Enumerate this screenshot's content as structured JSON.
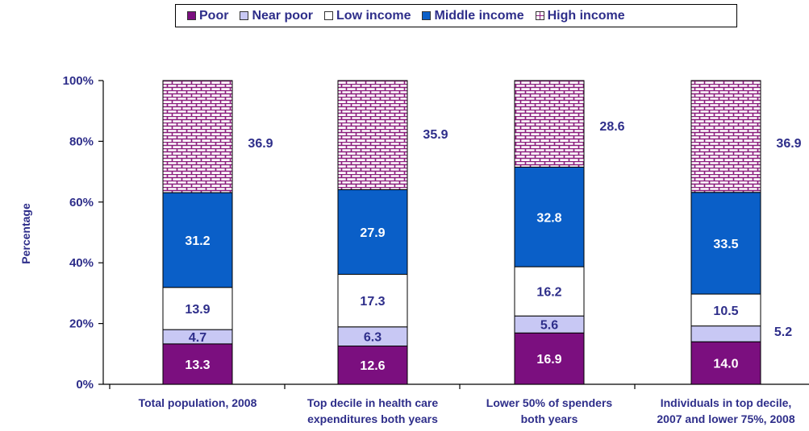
{
  "chart_data": {
    "type": "bar",
    "stacked": true,
    "ylabel": "Percentage",
    "ylim": [
      0,
      100
    ],
    "yticks": [
      "0%",
      "20%",
      "40%",
      "60%",
      "80%",
      "100%"
    ],
    "categories": [
      [
        "Total population, 2008"
      ],
      [
        "Top decile in health care",
        "expenditures both years"
      ],
      [
        "Lower 50% of spenders",
        "both years"
      ],
      [
        "Individuals in top decile,",
        "2007 and lower 75%, 2008"
      ]
    ],
    "series": [
      {
        "name": "Poor",
        "color": "#7b0f7f",
        "label_color": "#ffffff",
        "values": [
          13.3,
          12.6,
          16.9,
          14.0
        ],
        "labels": [
          "13.3",
          "12.6",
          "16.9",
          "14.0"
        ]
      },
      {
        "name": "Near poor",
        "color": "#c8c8f4",
        "label_color": "#2e2e8a",
        "values": [
          4.7,
          6.3,
          5.6,
          5.2
        ],
        "labels": [
          "4.7",
          "6.3",
          "5.6",
          "5.2"
        ]
      },
      {
        "name": "Low income",
        "color": "#ffffff",
        "label_color": "#2e2e8a",
        "values": [
          13.9,
          17.3,
          16.2,
          10.5
        ],
        "labels": [
          "13.9",
          "17.3",
          "16.2",
          "10.5"
        ]
      },
      {
        "name": "Middle income",
        "color": "#0a5fc8",
        "label_color": "#ffffff",
        "values": [
          31.2,
          27.9,
          32.8,
          33.5
        ],
        "labels": [
          "31.2",
          "27.9",
          "32.8",
          "33.5"
        ]
      },
      {
        "name": "High income",
        "color": "#ffffff",
        "pattern_color": "#8a1c7c",
        "label_color": "#2e2e8a",
        "values": [
          36.9,
          35.9,
          28.6,
          36.9
        ],
        "labels": [
          "36.9",
          "35.9",
          "28.6",
          "36.9"
        ]
      }
    ],
    "legend": [
      "Poor",
      "Near poor",
      "Low income",
      "Middle income",
      "High income"
    ],
    "legend_position": "top"
  }
}
